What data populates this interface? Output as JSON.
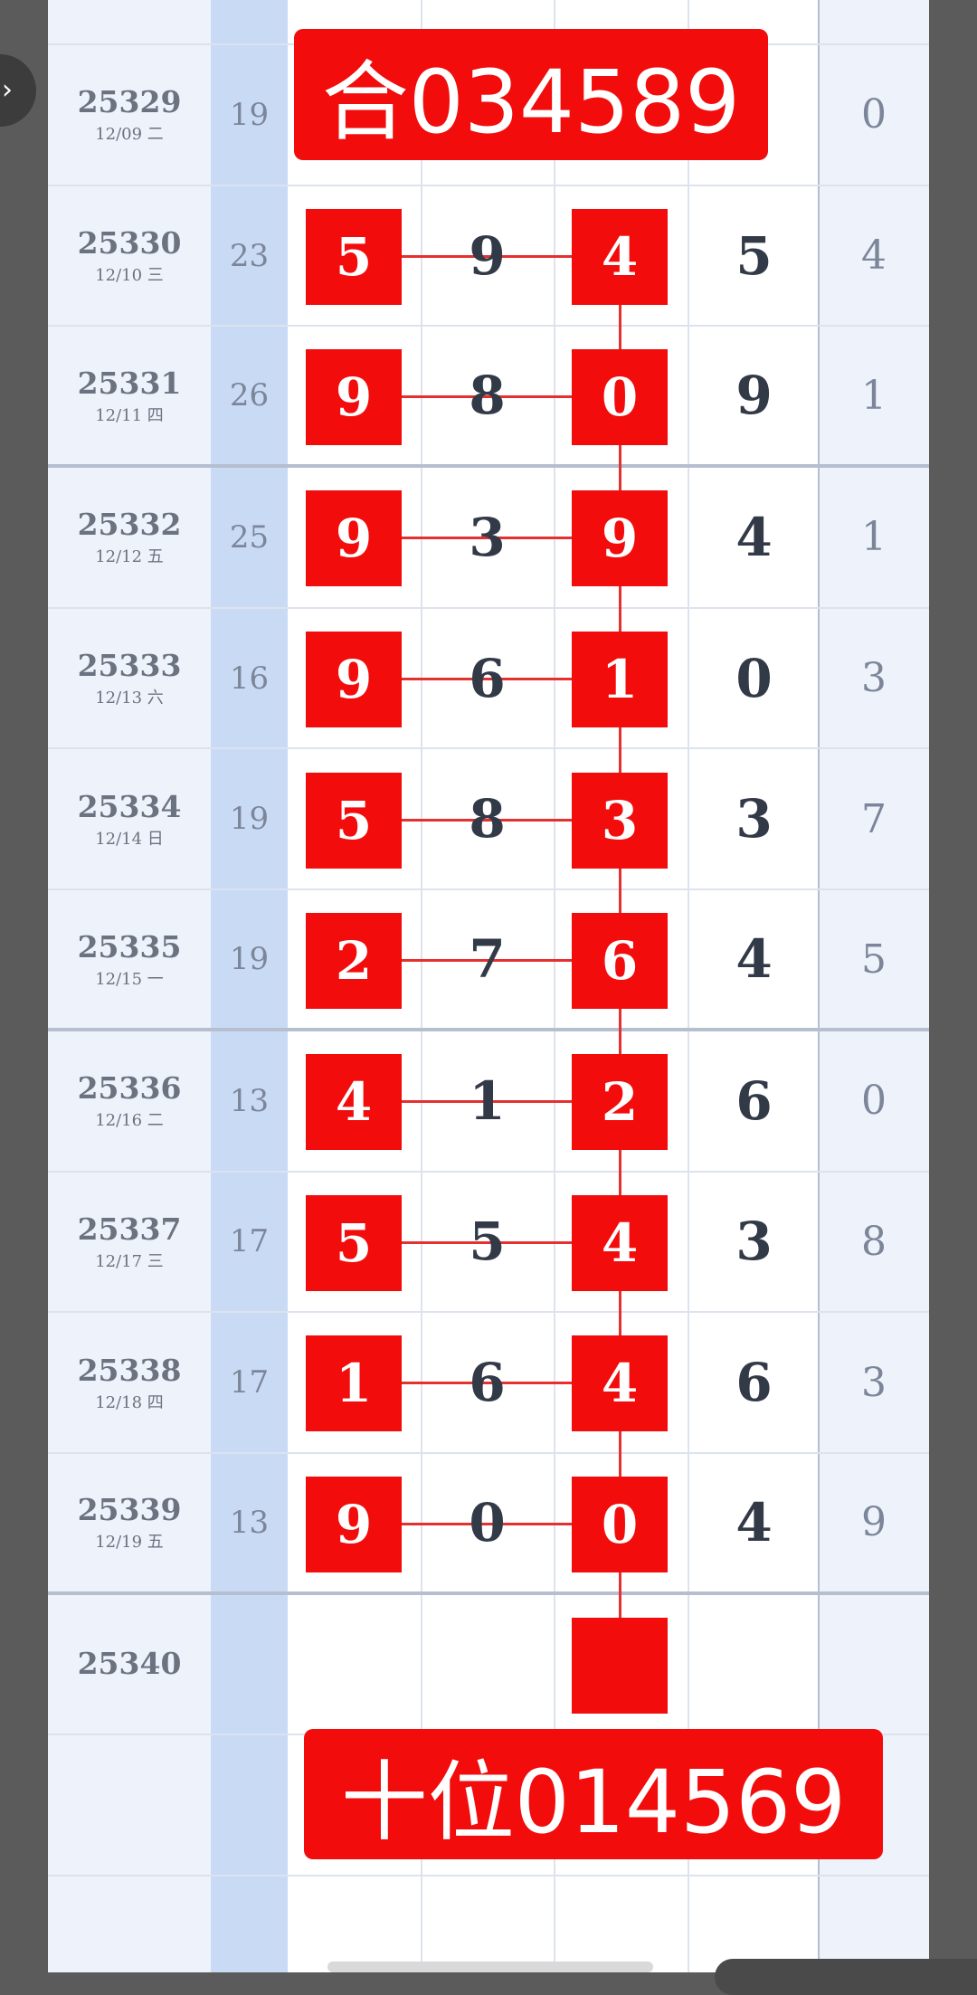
{
  "colors": {
    "accent": "#f20c0c",
    "sum_column": "#c9daf5",
    "issue_column": "#eef2fb"
  },
  "top_banner": "合034589",
  "bottom_banner": "十位014569",
  "rows": [
    {
      "issue": "25329",
      "date": "12/09 二",
      "sum": "19",
      "digits": [
        "",
        "",
        "",
        ""
      ],
      "marked": [
        false,
        false,
        false,
        false
      ],
      "span": "0"
    },
    {
      "issue": "25330",
      "date": "12/10 三",
      "sum": "23",
      "digits": [
        "5",
        "9",
        "4",
        "5"
      ],
      "marked": [
        true,
        false,
        true,
        false
      ],
      "span": "4"
    },
    {
      "issue": "25331",
      "date": "12/11 四",
      "sum": "26",
      "digits": [
        "9",
        "8",
        "0",
        "9"
      ],
      "marked": [
        true,
        false,
        true,
        false
      ],
      "span": "1"
    },
    {
      "issue": "25332",
      "date": "12/12 五",
      "sum": "25",
      "digits": [
        "9",
        "3",
        "9",
        "4"
      ],
      "marked": [
        true,
        false,
        true,
        false
      ],
      "span": "1"
    },
    {
      "issue": "25333",
      "date": "12/13 六",
      "sum": "16",
      "digits": [
        "9",
        "6",
        "1",
        "0"
      ],
      "marked": [
        true,
        false,
        true,
        false
      ],
      "span": "3"
    },
    {
      "issue": "25334",
      "date": "12/14 日",
      "sum": "19",
      "digits": [
        "5",
        "8",
        "3",
        "3"
      ],
      "marked": [
        true,
        false,
        true,
        false
      ],
      "span": "7"
    },
    {
      "issue": "25335",
      "date": "12/15 一",
      "sum": "19",
      "digits": [
        "2",
        "7",
        "6",
        "4"
      ],
      "marked": [
        true,
        false,
        true,
        false
      ],
      "span": "5"
    },
    {
      "issue": "25336",
      "date": "12/16 二",
      "sum": "13",
      "digits": [
        "4",
        "1",
        "2",
        "6"
      ],
      "marked": [
        true,
        false,
        true,
        false
      ],
      "span": "0"
    },
    {
      "issue": "25337",
      "date": "12/17 三",
      "sum": "17",
      "digits": [
        "5",
        "5",
        "4",
        "3"
      ],
      "marked": [
        true,
        false,
        true,
        false
      ],
      "span": "8"
    },
    {
      "issue": "25338",
      "date": "12/18 四",
      "sum": "17",
      "digits": [
        "1",
        "6",
        "4",
        "6"
      ],
      "marked": [
        true,
        false,
        true,
        false
      ],
      "span": "3"
    },
    {
      "issue": "25339",
      "date": "12/19 五",
      "sum": "13",
      "digits": [
        "9",
        "0",
        "0",
        "4"
      ],
      "marked": [
        true,
        false,
        true,
        false
      ],
      "span": "9"
    },
    {
      "issue": "25340",
      "date": "",
      "sum": "",
      "digits": [
        "",
        "",
        "",
        ""
      ],
      "marked": [
        false,
        false,
        true,
        false
      ],
      "span": ""
    },
    {
      "issue": "",
      "date": "",
      "sum": "",
      "digits": [
        "",
        "",
        "",
        ""
      ],
      "marked": [
        false,
        false,
        false,
        false
      ],
      "span": ""
    }
  ]
}
